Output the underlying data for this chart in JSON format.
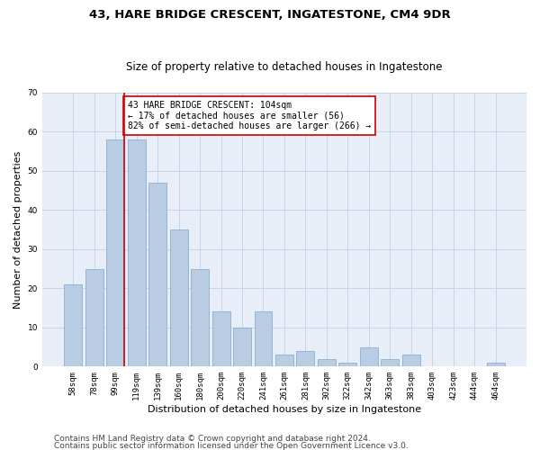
{
  "title1": "43, HARE BRIDGE CRESCENT, INGATESTONE, CM4 9DR",
  "title2": "Size of property relative to detached houses in Ingatestone",
  "xlabel": "Distribution of detached houses by size in Ingatestone",
  "ylabel": "Number of detached properties",
  "categories": [
    "58sqm",
    "78sqm",
    "99sqm",
    "119sqm",
    "139sqm",
    "160sqm",
    "180sqm",
    "200sqm",
    "220sqm",
    "241sqm",
    "261sqm",
    "281sqm",
    "302sqm",
    "322sqm",
    "342sqm",
    "363sqm",
    "383sqm",
    "403sqm",
    "423sqm",
    "444sqm",
    "464sqm"
  ],
  "values": [
    21,
    25,
    58,
    58,
    47,
    35,
    25,
    14,
    10,
    14,
    3,
    4,
    2,
    1,
    5,
    2,
    3,
    0,
    0,
    0,
    1
  ],
  "bar_color": "#b8cce4",
  "bar_edge_color": "#8ab0d0",
  "vline_color": "#cc0000",
  "vline_x": 2.425,
  "annotation_text": "43 HARE BRIDGE CRESCENT: 104sqm\n← 17% of detached houses are smaller (56)\n82% of semi-detached houses are larger (266) →",
  "annotation_box_color": "#ffffff",
  "annotation_box_edge": "#cc0000",
  "ylim": [
    0,
    70
  ],
  "yticks": [
    0,
    10,
    20,
    30,
    40,
    50,
    60,
    70
  ],
  "grid_color": "#c8d4e8",
  "background_color": "#e8eef8",
  "footer1": "Contains HM Land Registry data © Crown copyright and database right 2024.",
  "footer2": "Contains public sector information licensed under the Open Government Licence v3.0.",
  "title_fontsize": 9.5,
  "subtitle_fontsize": 8.5,
  "xlabel_fontsize": 8,
  "ylabel_fontsize": 8,
  "tick_fontsize": 6.5,
  "annotation_fontsize": 7,
  "footer_fontsize": 6.5
}
